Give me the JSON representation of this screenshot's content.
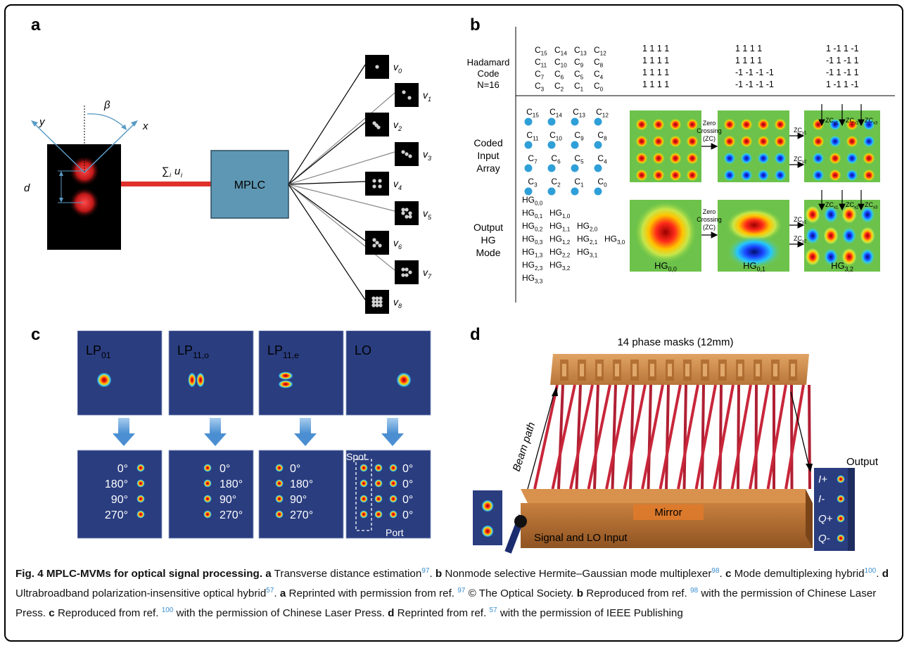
{
  "panels": {
    "a": {
      "letter": "a",
      "axis_y": "y",
      "axis_x": "x",
      "angle": "β",
      "distance": "d",
      "sum_label": "∑",
      "sum_sub": "i",
      "sum_var": "u",
      "sum_var_sub": "i",
      "box_label": "MPLC",
      "outputs": [
        {
          "v": "v",
          "sub": "0"
        },
        {
          "v": "v",
          "sub": "1"
        },
        {
          "v": "v",
          "sub": "2"
        },
        {
          "v": "v",
          "sub": "3"
        },
        {
          "v": "v",
          "sub": "4"
        },
        {
          "v": "v",
          "sub": "5"
        },
        {
          "v": "v",
          "sub": "6"
        },
        {
          "v": "v",
          "sub": "7"
        },
        {
          "v": "v",
          "sub": "8"
        }
      ]
    },
    "b": {
      "letter": "b",
      "row1_label": [
        "Hadamard",
        "Code",
        "N=16"
      ],
      "row2_label": [
        "Coded",
        "Input",
        "Array"
      ],
      "row3_label": [
        "Output",
        "HG",
        "Mode"
      ],
      "code_rows": [
        [
          "C15",
          "C14",
          "C13",
          "C12"
        ],
        [
          "C11",
          "C10",
          "C9",
          "C8"
        ],
        [
          "C7",
          "C6",
          "C5",
          "C4"
        ],
        [
          "C3",
          "C2",
          "C1",
          "C0"
        ]
      ],
      "matrix_1": [
        "1   1   1   1",
        "1   1   1   1",
        "1   1   1   1",
        "1   1   1   1"
      ],
      "matrix_2": [
        "1   1   1   1",
        "1   1   1   1",
        "-1  -1  -1  -1",
        "-1  -1  -1  -1"
      ],
      "matrix_3": [
        "1   -1   1   -1",
        "-1   1   -1   1",
        "-1   1   -1   1",
        "1   -1   1   -1"
      ],
      "coded_labels": [
        "C15",
        "C14",
        "C13",
        "C12",
        "C11",
        "C10",
        "C9",
        "C8",
        "C7",
        "C6",
        "C5",
        "C4",
        "C3",
        "C2",
        "C1",
        "C0"
      ],
      "hg_list": [
        "HG0,0",
        "HG0,1  HG1,0",
        "HG0,2  HG1,1  HG2,0",
        "HG0,3  HG1,2  HG2,1  HG3,0",
        "HG1,3  HG2,2  HG3,1",
        "HG2,3  HG3,2",
        "HG3,3"
      ],
      "zero_crossing": [
        "Zero",
        "Crossing",
        "(ZC)"
      ],
      "zc_labels": [
        "ZCy1",
        "ZCy2",
        "ZCx1",
        "ZCx2",
        "ZCx3"
      ],
      "hg_names": [
        "HG0,0",
        "HG0,1",
        "HG3,2"
      ]
    },
    "c": {
      "letter": "c",
      "tops": [
        "LP01",
        "LP11,o",
        "LP11,e",
        "LO"
      ],
      "phases": [
        "0°",
        "180°",
        "90°",
        "270°"
      ],
      "lo_phases": [
        "0°",
        "0°",
        "0°",
        "0°"
      ],
      "spot": "Spot",
      "port": "Port"
    },
    "d": {
      "letter": "d",
      "title": "14 phase masks (12mm)",
      "beam_path": "Beam path",
      "mirror": "Mirror",
      "output": "Output",
      "output_labels": [
        "I+",
        "I-",
        "Q+",
        "Q-"
      ],
      "input_label": "Signal and LO Input"
    }
  },
  "caption": {
    "fig": "Fig. 4 MPLC-MVMs for optical signal processing.",
    "a_text": " Transverse distance estimation",
    "a_ref": "97",
    "b_text": " Nonmode selective Hermite–Gaussian mode multiplexer",
    "b_ref": "98",
    "c_text": " Mode demultiplexing hybrid",
    "c_ref": "100",
    "d_text": " Ultrabroadband polarization-insensitive optical hybrid",
    "d_ref": "57",
    "a2_text": " Reprinted with permission from ref. ",
    "a2_ref": "97",
    "a2_tail": " © The Optical Society.",
    "b2_text": " Reproduced from ref. ",
    "b2_ref": "98",
    "b2_tail": " with the permission of Chinese Laser Press.",
    "c2_text": " Reproduced from ref. ",
    "c2_ref": "100",
    "c2_tail": " with the permission of Chinese Laser Press.",
    "d2_text": " Reprinted from ref. ",
    "d2_ref": "57",
    "d2_tail": " with the permission of IEEE Publishing"
  },
  "colors": {
    "red_beam": "#e0302a",
    "mplc_box": "#5e97b3",
    "field_green": "#6cc24a",
    "spot_blue": "#2f8fd8",
    "panel_navy": "#2a3d7f",
    "arrow_blue": "#5a9bd6",
    "wood": "#d08a45",
    "ref_blue": "#3a8fd0"
  }
}
